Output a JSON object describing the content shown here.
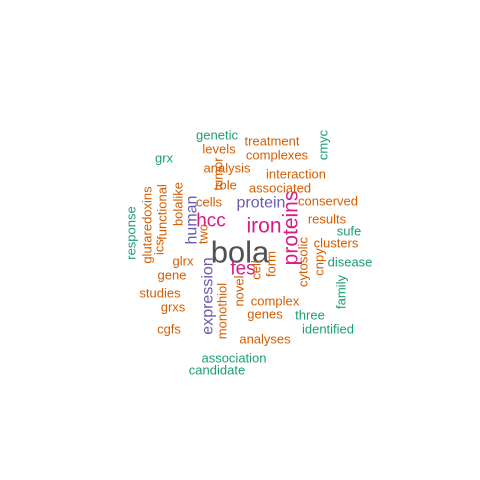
{
  "colors": {
    "dark": "#505050",
    "magenta": "#d81b88",
    "purple": "#6a5bb0",
    "orange": "#d55e00",
    "green": "#1b9e77"
  },
  "words": [
    {
      "text": "bola",
      "color": "dark"
    },
    {
      "text": "iron",
      "color": "magenta"
    },
    {
      "text": "proteins",
      "color": "magenta"
    },
    {
      "text": "fes",
      "color": "magenta"
    },
    {
      "text": "hcc",
      "color": "magenta"
    },
    {
      "text": "expression",
      "color": "purple"
    },
    {
      "text": "human",
      "color": "purple"
    },
    {
      "text": "protein",
      "color": "purple"
    },
    {
      "text": "genetic",
      "color": "green"
    },
    {
      "text": "treatment",
      "color": "orange"
    },
    {
      "text": "levels",
      "color": "orange"
    },
    {
      "text": "complexes",
      "color": "orange"
    },
    {
      "text": "cmyc",
      "color": "green"
    },
    {
      "text": "grx",
      "color": "green"
    },
    {
      "text": "analysis",
      "color": "orange"
    },
    {
      "text": "tumor",
      "color": "orange"
    },
    {
      "text": "interaction",
      "color": "orange"
    },
    {
      "text": "role",
      "color": "orange"
    },
    {
      "text": "associated",
      "color": "orange"
    },
    {
      "text": "glutaredoxins",
      "color": "orange"
    },
    {
      "text": "functional",
      "color": "orange"
    },
    {
      "text": "bolalike",
      "color": "orange"
    },
    {
      "text": "cells",
      "color": "orange"
    },
    {
      "text": "conserved",
      "color": "orange"
    },
    {
      "text": "response",
      "color": "green"
    },
    {
      "text": "results",
      "color": "orange"
    },
    {
      "text": "sufe",
      "color": "green"
    },
    {
      "text": "clusters",
      "color": "orange"
    },
    {
      "text": "two",
      "color": "orange"
    },
    {
      "text": "ics",
      "color": "orange"
    },
    {
      "text": "glrx",
      "color": "orange"
    },
    {
      "text": "gene",
      "color": "orange"
    },
    {
      "text": "cell",
      "color": "orange"
    },
    {
      "text": "form",
      "color": "orange"
    },
    {
      "text": "cytosolic",
      "color": "orange"
    },
    {
      "text": "cnpy",
      "color": "orange"
    },
    {
      "text": "disease",
      "color": "green"
    },
    {
      "text": "studies",
      "color": "orange"
    },
    {
      "text": "monothiol",
      "color": "orange"
    },
    {
      "text": "novel",
      "color": "orange"
    },
    {
      "text": "complex",
      "color": "orange"
    },
    {
      "text": "family",
      "color": "green"
    },
    {
      "text": "grxs",
      "color": "orange"
    },
    {
      "text": "genes",
      "color": "orange"
    },
    {
      "text": "three",
      "color": "green"
    },
    {
      "text": "cgfs",
      "color": "orange"
    },
    {
      "text": "identified",
      "color": "green"
    },
    {
      "text": "analyses",
      "color": "orange"
    },
    {
      "text": "association",
      "color": "green"
    },
    {
      "text": "candidate",
      "color": "green"
    }
  ]
}
